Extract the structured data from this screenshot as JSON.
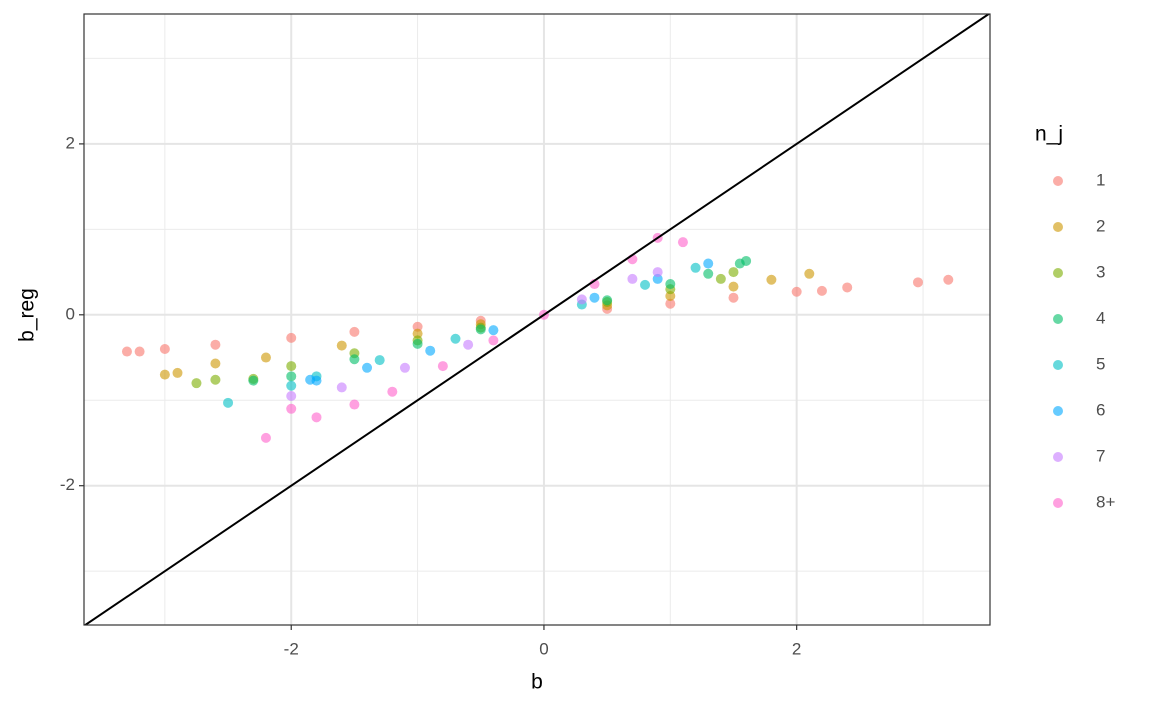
{
  "chart_data": {
    "type": "scatter",
    "x_label": "b",
    "y_label": "b_reg",
    "xlim": [
      -3.64,
      3.53
    ],
    "ylim": [
      -3.63,
      3.52
    ],
    "xticks": [
      -2,
      0,
      2
    ],
    "yticks": [
      -2,
      0,
      2
    ],
    "minor_grid": [
      -3,
      -1,
      1,
      3
    ],
    "grid": true,
    "abline": {
      "slope": 1,
      "intercept": 0
    },
    "legend_title": "n_j",
    "legend_position": "right",
    "series": [
      {
        "name": "1",
        "color": "#F8766D",
        "x": [
          -3.3,
          -3.2,
          -3.0,
          -2.6,
          -2.0,
          -1.5,
          -1.0,
          -0.5,
          0.5,
          1.0,
          1.5,
          2.0,
          2.2,
          2.4,
          2.96,
          3.2
        ],
        "values": [
          -0.43,
          -0.43,
          -0.4,
          -0.35,
          -0.27,
          -0.2,
          -0.14,
          -0.07,
          0.07,
          0.13,
          0.2,
          0.27,
          0.28,
          0.32,
          0.38,
          0.41
        ]
      },
      {
        "name": "2",
        "color": "#CD9600",
        "x": [
          -3.0,
          -2.9,
          -2.6,
          -2.2,
          -1.6,
          -1.0,
          -0.5,
          0.5,
          1.0,
          1.5,
          1.8,
          2.1
        ],
        "values": [
          -0.7,
          -0.68,
          -0.57,
          -0.5,
          -0.36,
          -0.22,
          -0.11,
          0.11,
          0.22,
          0.33,
          0.41,
          0.48
        ]
      },
      {
        "name": "3",
        "color": "#7CAE00",
        "x": [
          -2.75,
          -2.6,
          -2.3,
          -2.0,
          -1.5,
          -1.0,
          -0.5,
          0.5,
          1.0,
          1.4,
          1.5
        ],
        "values": [
          -0.8,
          -0.76,
          -0.75,
          -0.6,
          -0.45,
          -0.3,
          -0.15,
          0.15,
          0.3,
          0.42,
          0.5
        ]
      },
      {
        "name": "4",
        "color": "#00BE67",
        "x": [
          -2.3,
          -2.0,
          -1.5,
          -1.0,
          -0.5,
          0.5,
          1.0,
          1.3,
          1.55,
          1.6
        ],
        "values": [
          -0.77,
          -0.72,
          -0.52,
          -0.34,
          -0.17,
          0.17,
          0.36,
          0.48,
          0.6,
          0.63
        ]
      },
      {
        "name": "5",
        "color": "#00BFC4",
        "x": [
          -2.5,
          -2.0,
          -1.8,
          -1.3,
          -0.7,
          0.3,
          0.8,
          1.2
        ],
        "values": [
          -1.03,
          -0.83,
          -0.72,
          -0.53,
          -0.28,
          0.12,
          0.35,
          0.55
        ]
      },
      {
        "name": "6",
        "color": "#00A9FF",
        "x": [
          -1.85,
          -1.8,
          -1.4,
          -0.9,
          -0.4,
          0.4,
          0.9,
          1.3
        ],
        "values": [
          -0.76,
          -0.77,
          -0.62,
          -0.42,
          -0.18,
          0.2,
          0.42,
          0.6
        ]
      },
      {
        "name": "7",
        "color": "#C77CFF",
        "x": [
          -2.0,
          -1.6,
          -1.1,
          -0.6,
          0.3,
          0.7,
          0.9
        ],
        "values": [
          -0.95,
          -0.85,
          -0.62,
          -0.35,
          0.18,
          0.42,
          0.5
        ]
      },
      {
        "name": "8+",
        "color": "#FF61CC",
        "x": [
          -2.2,
          -2.0,
          -1.8,
          -1.5,
          -1.2,
          -0.8,
          -0.4,
          0,
          0.4,
          0.7,
          0.9,
          1.1
        ],
        "values": [
          -1.44,
          -1.1,
          -1.2,
          -1.05,
          -0.9,
          -0.6,
          -0.3,
          0,
          0.36,
          0.65,
          0.9,
          0.85
        ]
      }
    ]
  }
}
